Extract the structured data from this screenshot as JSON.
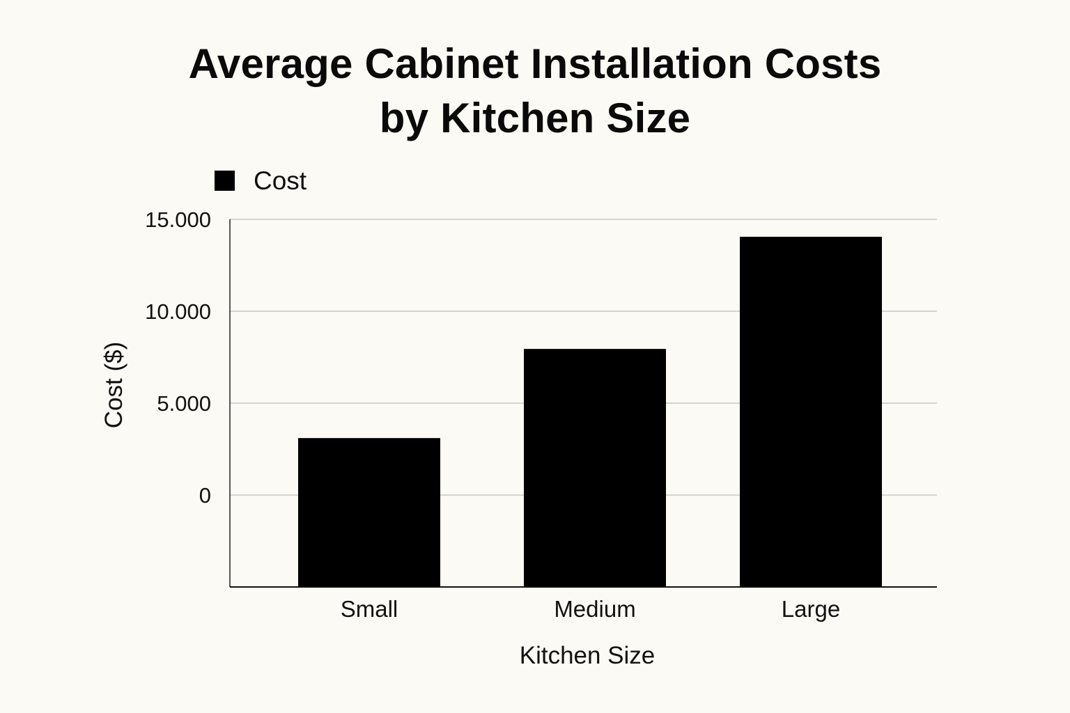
{
  "chart_data": {
    "type": "bar",
    "title": [
      "Average Cabinet Installation Costs",
      "by Kitchen Size"
    ],
    "xlabel": "Kitchen Size",
    "ylabel": "Cost ($)",
    "categories": [
      "Small",
      "Medium",
      "Large"
    ],
    "series": [
      {
        "name": "Cost",
        "values": [
          3100,
          7950,
          14050
        ]
      }
    ],
    "yticks": [
      0,
      5000,
      10000,
      15000
    ],
    "ytick_labels": [
      "0",
      "5.000",
      "10.000",
      "15.000"
    ],
    "ylim": [
      -5000,
      15000
    ],
    "grid": true,
    "legend": "top-left",
    "bar_color": "#000000",
    "grid_color": "#c8c8c8"
  }
}
